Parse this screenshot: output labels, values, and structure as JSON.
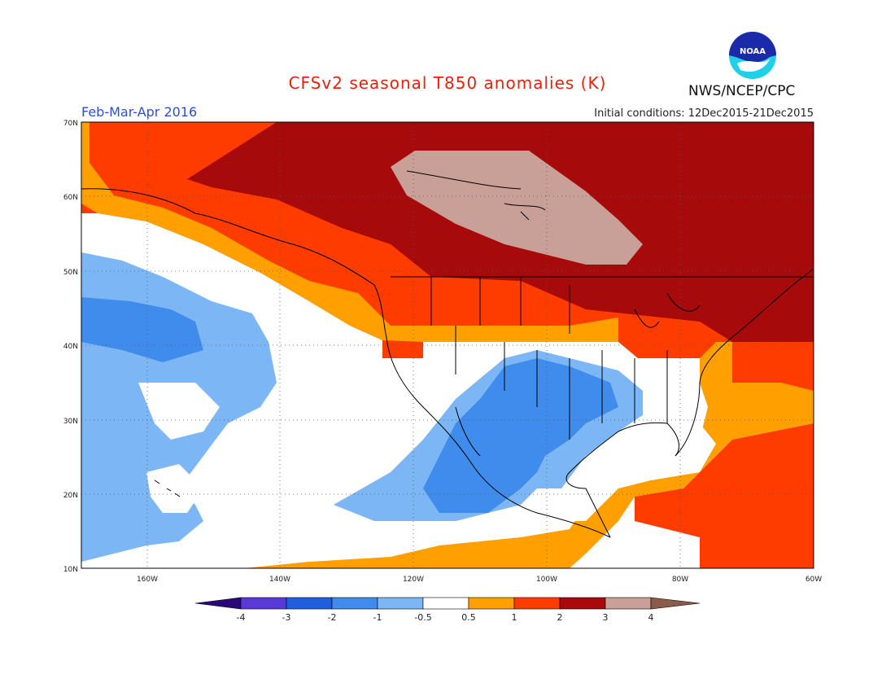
{
  "header": {
    "title": "CFSv2 seasonal T850 anomalies (K)",
    "period": "Feb-Mar-Apr 2016",
    "initial_conditions": "Initial conditions: 12Dec2015-21Dec2015",
    "agency": "NWS/NCEP/CPC",
    "logo_text": "NOAA"
  },
  "map": {
    "lon_range": [
      -172,
      -60
    ],
    "lat_range": [
      10,
      70
    ],
    "lon_ticks": [
      "160W",
      "140W",
      "120W",
      "100W",
      "80W",
      "60W"
    ],
    "lat_ticks": [
      "10N",
      "20N",
      "30N",
      "40N",
      "50N",
      "60N",
      "70N"
    ],
    "grid": true
  },
  "legend": {
    "unit": "K",
    "labels": [
      "-4",
      "-3",
      "-2",
      "-1",
      "-0.5",
      "0.5",
      "1",
      "2",
      "3",
      "4"
    ],
    "colors": [
      "#3a10a8",
      "#5a3ad4",
      "#1f5fdc",
      "#3f8cec",
      "#7cb6f4",
      "#ffffff",
      "#ffa000",
      "#ff3c00",
      "#a60a0a",
      "#c8a098",
      "#8a5a4a",
      "#2a0878"
    ]
  }
}
